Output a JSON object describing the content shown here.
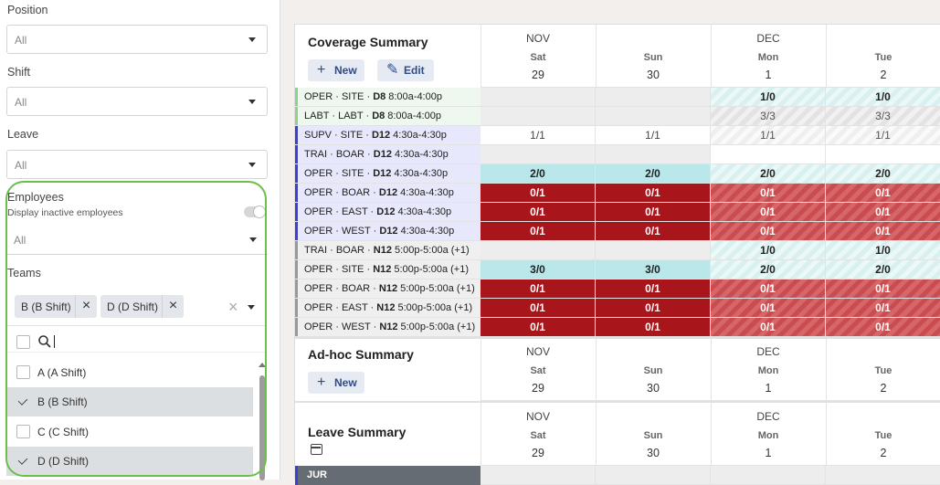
{
  "filters": {
    "position": {
      "label": "Position",
      "value": "All"
    },
    "shift": {
      "label": "Shift",
      "value": "All"
    },
    "leave": {
      "label": "Leave",
      "value": "All"
    },
    "employees": {
      "label": "Employees",
      "inactive_label": "Display inactive employees",
      "inactive_on": false,
      "value": "All"
    },
    "teams": {
      "label": "Teams",
      "chips": [
        "B (B Shift)",
        "D (D Shift)"
      ],
      "search_value": "",
      "options": [
        {
          "label": "A (A Shift)",
          "checked": false
        },
        {
          "label": "B (B Shift)",
          "checked": true
        },
        {
          "label": "C (C Shift)",
          "checked": false
        },
        {
          "label": "D (D Shift)",
          "checked": true
        }
      ]
    }
  },
  "days": [
    {
      "month": "NOV",
      "dow": "Sat",
      "num": "29"
    },
    {
      "month": "",
      "dow": "Sun",
      "num": "30"
    },
    {
      "month": "DEC",
      "dow": "Mon",
      "num": "1"
    },
    {
      "month": "",
      "dow": "Tue",
      "num": "2"
    }
  ],
  "coverage": {
    "title": "Coverage Summary",
    "new_label": "New",
    "edit_label": "Edit",
    "rows": [
      {
        "pre": "OPER · SITE · ",
        "code": "D8",
        "time": "8:00a-4:00p",
        "color": "#8fd18a",
        "bg": "#eef8ee",
        "cells": [
          {
            "t": "",
            "k": "empty"
          },
          {
            "t": "",
            "k": "empty"
          },
          {
            "t": "1/0",
            "k": "tealstripe"
          },
          {
            "t": "1/0",
            "k": "tealstripe"
          }
        ]
      },
      {
        "pre": "LABT · LABT · ",
        "code": "D8",
        "time": "8:00a-4:00p",
        "color": "#8fd18a",
        "bg": "#eef8ee",
        "cells": [
          {
            "t": "",
            "k": "empty"
          },
          {
            "t": "",
            "k": "empty"
          },
          {
            "t": "3/3",
            "k": "graystripe"
          },
          {
            "t": "3/3",
            "k": "graystripe"
          }
        ]
      },
      {
        "pre": "SUPV · SITE · ",
        "code": "D12",
        "time": "4:30a-4:30p",
        "color": "#3b3fd8",
        "bg": "#e7e8fb",
        "cells": [
          {
            "t": "1/1",
            "k": "white"
          },
          {
            "t": "1/1",
            "k": "white"
          },
          {
            "t": "1/1",
            "k": "whitestripe"
          },
          {
            "t": "1/1",
            "k": "whitestripe"
          }
        ]
      },
      {
        "pre": "TRAI · BOAR · ",
        "code": "D12",
        "time": "4:30a-4:30p",
        "color": "#3b3fd8",
        "bg": "#e7e8fb",
        "cells": [
          {
            "t": "",
            "k": "empty"
          },
          {
            "t": "",
            "k": "empty"
          },
          {
            "t": "",
            "k": "white"
          },
          {
            "t": "",
            "k": "white"
          }
        ]
      },
      {
        "pre": "OPER · SITE · ",
        "code": "D12",
        "time": "4:30a-4:30p",
        "color": "#3b3fd8",
        "bg": "#e7e8fb",
        "cells": [
          {
            "t": "2/0",
            "k": "teal"
          },
          {
            "t": "2/0",
            "k": "teal"
          },
          {
            "t": "2/0",
            "k": "tealstripe"
          },
          {
            "t": "2/0",
            "k": "tealstripe"
          }
        ]
      },
      {
        "pre": "OPER · BOAR · ",
        "code": "D12",
        "time": "4:30a-4:30p",
        "color": "#3b3fd8",
        "bg": "#e7e8fb",
        "cells": [
          {
            "t": "0/1",
            "k": "red"
          },
          {
            "t": "0/1",
            "k": "red"
          },
          {
            "t": "0/1",
            "k": "redstripe"
          },
          {
            "t": "0/1",
            "k": "redstripe"
          }
        ]
      },
      {
        "pre": "OPER · EAST · ",
        "code": "D12",
        "time": "4:30a-4:30p",
        "color": "#3b3fd8",
        "bg": "#e7e8fb",
        "cells": [
          {
            "t": "0/1",
            "k": "red"
          },
          {
            "t": "0/1",
            "k": "red"
          },
          {
            "t": "0/1",
            "k": "redstripe"
          },
          {
            "t": "0/1",
            "k": "redstripe"
          }
        ]
      },
      {
        "pre": "OPER · WEST · ",
        "code": "D12",
        "time": "4:30a-4:30p",
        "color": "#3b3fd8",
        "bg": "#e7e8fb",
        "cells": [
          {
            "t": "0/1",
            "k": "red"
          },
          {
            "t": "0/1",
            "k": "red"
          },
          {
            "t": "0/1",
            "k": "redstripe"
          },
          {
            "t": "0/1",
            "k": "redstripe"
          }
        ]
      },
      {
        "pre": "TRAI · BOAR · ",
        "code": "N12",
        "time": "5:00p-5:00a (+1)",
        "color": "#999999",
        "bg": "#efefef",
        "cells": [
          {
            "t": "",
            "k": "empty"
          },
          {
            "t": "",
            "k": "empty"
          },
          {
            "t": "1/0",
            "k": "tealstripe"
          },
          {
            "t": "1/0",
            "k": "tealstripe"
          }
        ]
      },
      {
        "pre": "OPER · SITE · ",
        "code": "N12",
        "time": "5:00p-5:00a (+1)",
        "color": "#999999",
        "bg": "#efefef",
        "cells": [
          {
            "t": "3/0",
            "k": "teal"
          },
          {
            "t": "3/0",
            "k": "teal"
          },
          {
            "t": "2/0",
            "k": "tealstripe"
          },
          {
            "t": "2/0",
            "k": "tealstripe"
          }
        ]
      },
      {
        "pre": "OPER · BOAR · ",
        "code": "N12",
        "time": "5:00p-5:00a (+1)",
        "color": "#999999",
        "bg": "#efefef",
        "cells": [
          {
            "t": "0/1",
            "k": "red"
          },
          {
            "t": "0/1",
            "k": "red"
          },
          {
            "t": "0/1",
            "k": "redstripe"
          },
          {
            "t": "0/1",
            "k": "redstripe"
          }
        ]
      },
      {
        "pre": "OPER · EAST · ",
        "code": "N12",
        "time": "5:00p-5:00a (+1)",
        "color": "#999999",
        "bg": "#efefef",
        "cells": [
          {
            "t": "0/1",
            "k": "red"
          },
          {
            "t": "0/1",
            "k": "red"
          },
          {
            "t": "0/1",
            "k": "redstripe"
          },
          {
            "t": "0/1",
            "k": "redstripe"
          }
        ]
      },
      {
        "pre": "OPER · WEST · ",
        "code": "N12",
        "time": "5:00p-5:00a (+1)",
        "color": "#999999",
        "bg": "#efefef",
        "cells": [
          {
            "t": "0/1",
            "k": "red"
          },
          {
            "t": "0/1",
            "k": "red"
          },
          {
            "t": "0/1",
            "k": "redstripe"
          },
          {
            "t": "0/1",
            "k": "redstripe"
          }
        ]
      }
    ]
  },
  "adhoc": {
    "title": "Ad-hoc Summary",
    "new_label": "New"
  },
  "leave": {
    "title": "Leave Summary",
    "first_row": "JUR"
  }
}
